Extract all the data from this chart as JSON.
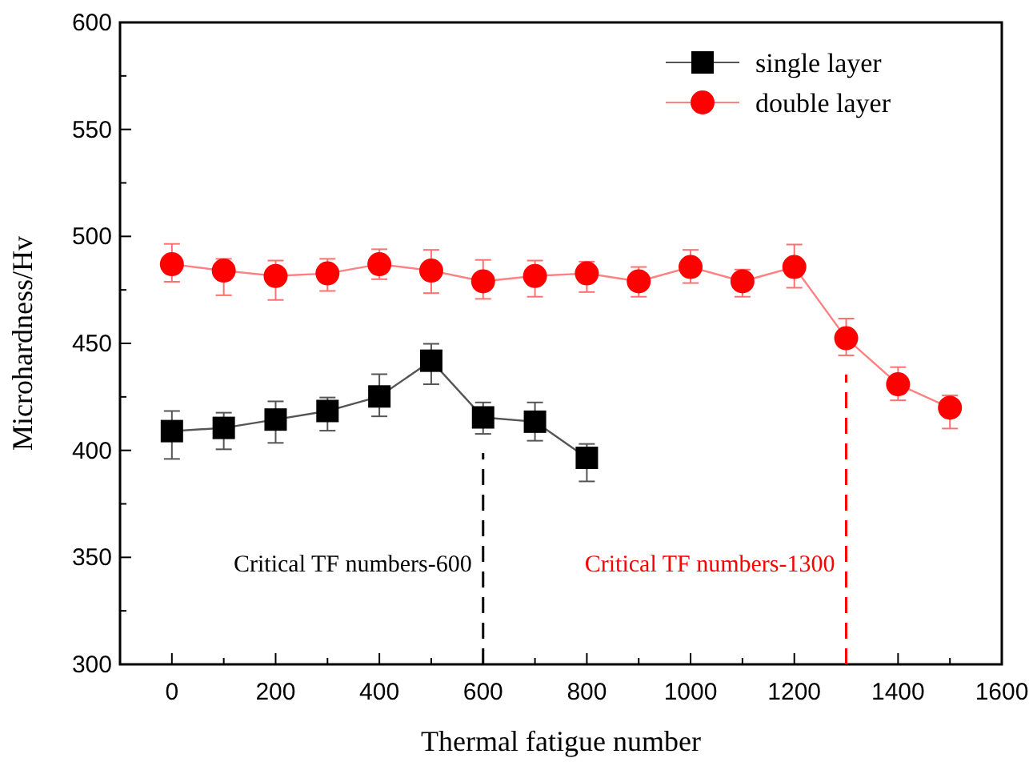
{
  "chart_data": {
    "type": "line",
    "xlabel": "Thermal fatigue number",
    "ylabel": "Microhardness/Hv",
    "x": [
      0,
      100,
      200,
      300,
      400,
      500,
      600,
      700,
      800,
      900,
      1000,
      1100,
      1200,
      1300,
      1400,
      1500
    ],
    "series": [
      {
        "name": "single layer",
        "color": "#000000",
        "marker": "square",
        "x": [
          0,
          100,
          200,
          300,
          400,
          500,
          600,
          700,
          800
        ],
        "values": [
          409,
          410.5,
          414.4,
          418.4,
          425.2,
          441.9,
          415.4,
          413.4,
          396.5
        ],
        "errors": [
          [
            396,
            418.4
          ],
          [
            400.5,
            417.6
          ],
          [
            403.5,
            422.9
          ],
          [
            409.2,
            424.7
          ],
          [
            415.9,
            435.6
          ],
          [
            430.9,
            449.8
          ],
          [
            407.7,
            422.4
          ],
          [
            404.5,
            422.4
          ],
          [
            385.5,
            403
          ]
        ]
      },
      {
        "name": "double layer",
        "color": "#ff0000",
        "marker": "circle",
        "values": [
          487,
          484,
          481.5,
          482.7,
          487,
          484,
          479,
          481.5,
          482.7,
          479,
          485.7,
          479,
          485.7,
          452.4,
          430.9,
          419.9
        ],
        "errors": [
          [
            478.8,
            496.5
          ],
          [
            472.5,
            489.5
          ],
          [
            470.3,
            488.7
          ],
          [
            474.5,
            489.5
          ],
          [
            480,
            494
          ],
          [
            473.5,
            493.7
          ],
          [
            470.8,
            489
          ],
          [
            471.8,
            488.7
          ],
          [
            474,
            488.2
          ],
          [
            471.8,
            485.7
          ],
          [
            478.2,
            493.7
          ],
          [
            471.8,
            484.5
          ],
          [
            476,
            496.2
          ],
          [
            444.4,
            461.6
          ],
          [
            423.4,
            438.9
          ],
          [
            410.2,
            425.7
          ]
        ]
      }
    ],
    "xlim": [
      -100,
      1600
    ],
    "xticks": [
      0,
      {
        "value": 100,
        "label": null
      },
      200,
      {
        "value": 300,
        "label": null
      },
      400,
      {
        "value": 500,
        "label": null
      },
      600,
      {
        "value": 700,
        "label": null
      },
      800,
      {
        "value": 900,
        "label": null
      },
      1000,
      {
        "value": 1100,
        "label": null
      },
      1200,
      {
        "value": 1300,
        "label": null
      },
      1400,
      {
        "value": 1500,
        "label": null
      },
      1600
    ],
    "ylim": [
      300,
      600
    ],
    "yticks": [
      300,
      {
        "value": 325,
        "label": null
      },
      350,
      {
        "value": 375,
        "label": null
      },
      400,
      {
        "value": 425,
        "label": null
      },
      450,
      {
        "value": 475,
        "label": null
      },
      500,
      {
        "value": 525,
        "label": null
      },
      550,
      {
        "value": 575,
        "label": null
      },
      600
    ],
    "ref_lines": [
      {
        "axis": "x",
        "value": 600,
        "label": "Critical TF numbers-600",
        "color": "#000000",
        "line_style": "dashed"
      },
      {
        "axis": "x",
        "value": 1300,
        "label": "Critical TF numbers-1300",
        "color": "#ff0000",
        "line_style": "dashed"
      }
    ],
    "legend": "top right",
    "grid": false
  }
}
